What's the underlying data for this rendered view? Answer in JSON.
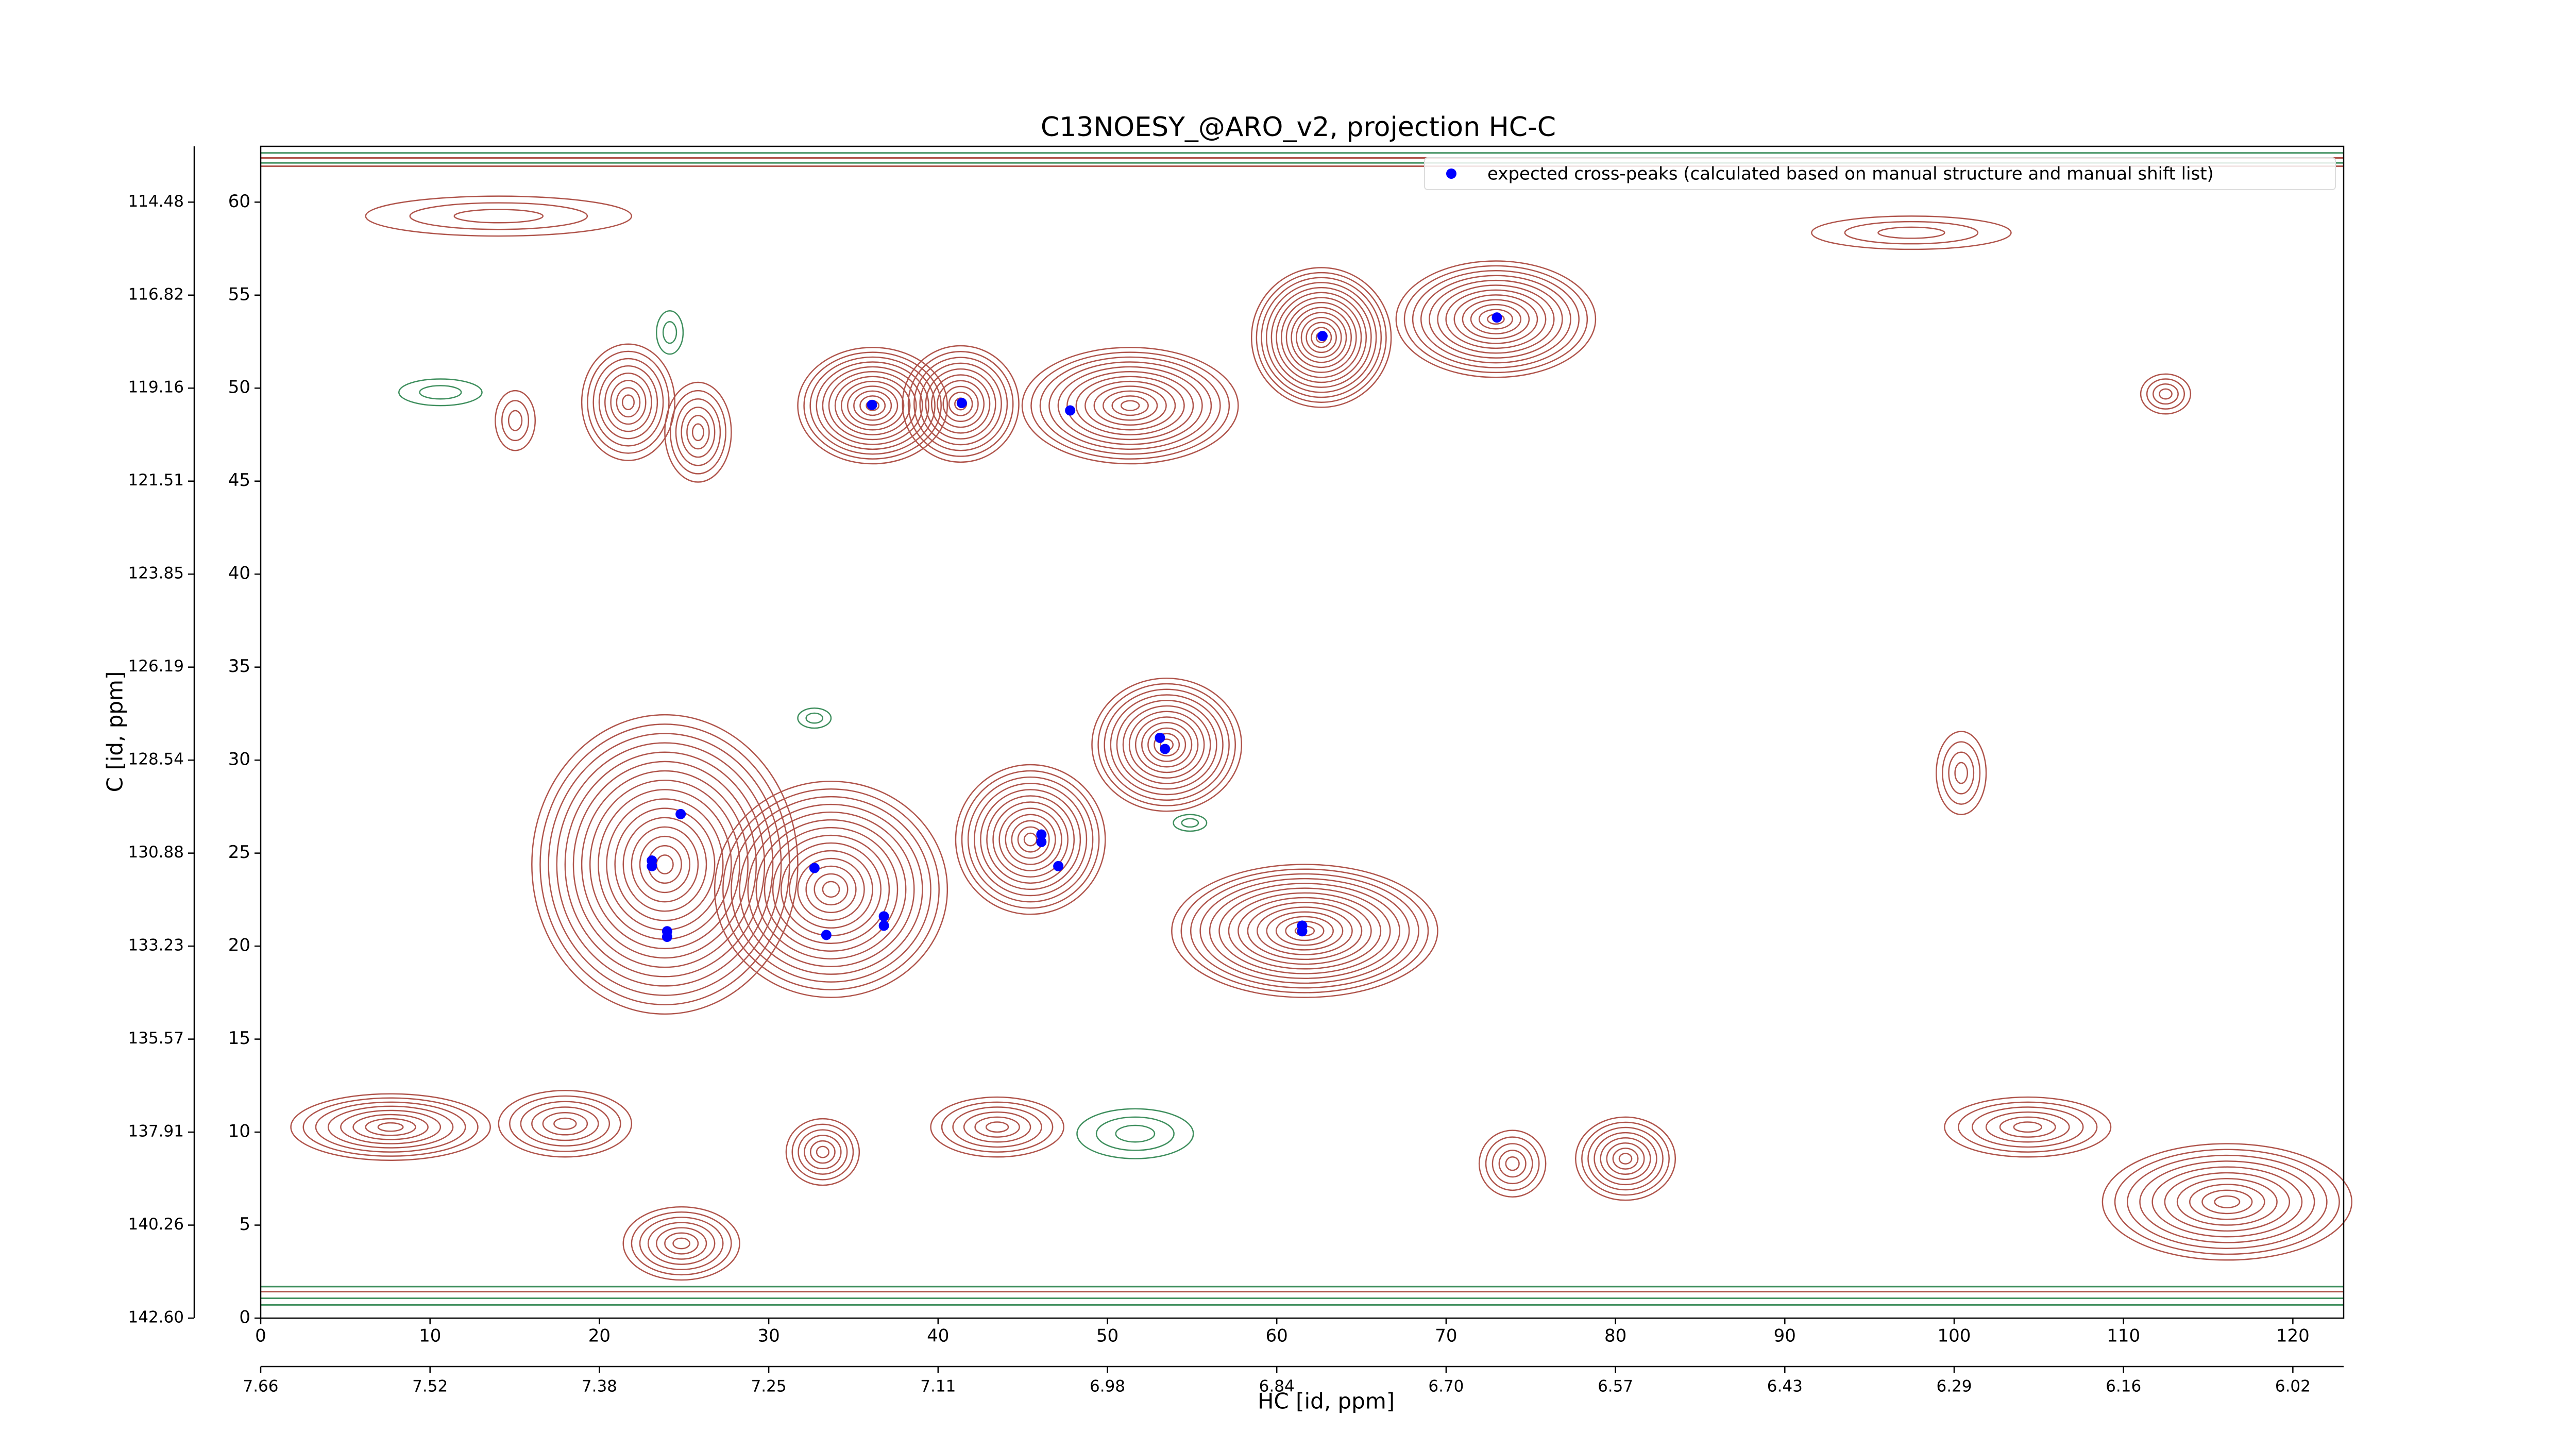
{
  "chart_data": {
    "type": "scatter",
    "title": "C13NOESY_@ARO_v2, projection HC-C",
    "xlabel": "HC [id, ppm]",
    "ylabel": "C [id, ppm]",
    "xlim": [
      0,
      123
    ],
    "ylim": [
      0,
      63
    ],
    "xticks": [
      0,
      10,
      20,
      30,
      40,
      50,
      60,
      70,
      80,
      90,
      100,
      110,
      120
    ],
    "yticks": [
      0,
      5,
      10,
      15,
      20,
      25,
      30,
      35,
      40,
      45,
      50,
      55,
      60
    ],
    "x2ticks": [
      {
        "value": 0,
        "label": "7.66"
      },
      {
        "value": 10,
        "label": "7.52"
      },
      {
        "value": 20,
        "label": "7.38"
      },
      {
        "value": 30,
        "label": "7.25"
      },
      {
        "value": 40,
        "label": "7.11"
      },
      {
        "value": 50,
        "label": "6.98"
      },
      {
        "value": 60,
        "label": "6.84"
      },
      {
        "value": 70,
        "label": "6.70"
      },
      {
        "value": 80,
        "label": "6.57"
      },
      {
        "value": 90,
        "label": "6.43"
      },
      {
        "value": 100,
        "label": "6.29"
      },
      {
        "value": 110,
        "label": "6.16"
      },
      {
        "value": 120,
        "label": "6.02"
      }
    ],
    "y2ticks": [
      {
        "value": 0,
        "label": "142.60"
      },
      {
        "value": 5,
        "label": "140.26"
      },
      {
        "value": 10,
        "label": "137.91"
      },
      {
        "value": 15,
        "label": "135.57"
      },
      {
        "value": 20,
        "label": "133.23"
      },
      {
        "value": 25,
        "label": "130.88"
      },
      {
        "value": 30,
        "label": "128.54"
      },
      {
        "value": 35,
        "label": "126.19"
      },
      {
        "value": 40,
        "label": "123.85"
      },
      {
        "value": 45,
        "label": "121.51"
      },
      {
        "value": 50,
        "label": "119.16"
      },
      {
        "value": 55,
        "label": "116.82"
      },
      {
        "value": 60,
        "label": "114.48"
      }
    ],
    "legend": "upper right",
    "series": [
      {
        "name": "expected cross-peaks (calculated based on manual structure and manual shift list)",
        "color": "#0000ff",
        "x": [
          62.7,
          73.0,
          36.1,
          41.4,
          47.8,
          53.1,
          53.4,
          24.8,
          23.1,
          23.1,
          32.7,
          46.1,
          46.1,
          47.1,
          36.8,
          36.8,
          24.0,
          24.0,
          33.4,
          61.5,
          61.5
        ],
        "y": [
          52.8,
          53.8,
          49.1,
          49.2,
          48.8,
          31.2,
          30.6,
          27.1,
          24.6,
          24.3,
          24.2,
          26.0,
          25.6,
          24.3,
          21.6,
          21.1,
          20.8,
          20.5,
          20.6,
          21.1,
          20.8
        ]
      }
    ]
  }
}
